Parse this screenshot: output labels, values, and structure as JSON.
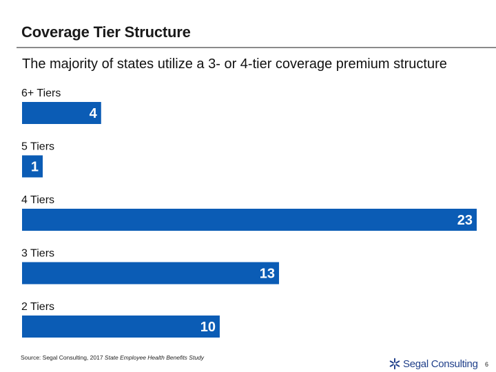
{
  "page": {
    "title": "Coverage Tier Structure",
    "subtitle": "The majority of states utilize a 3- or 4-tier coverage premium structure",
    "source_prefix": "Source: Segal Consulting, 2017 ",
    "source_italic": "State Employee Health Benefits Study",
    "logo_text": "Segal Consulting",
    "logo_icon": "segal-star-icon",
    "page_number": "6"
  },
  "colors": {
    "bar": "#0b5cb5",
    "logo": "#1f3f8a"
  },
  "chart_data": {
    "type": "bar",
    "orientation": "horizontal",
    "title": "",
    "xlabel": "",
    "ylabel": "",
    "categories": [
      "6+ Tiers",
      "5 Tiers",
      "4 Tiers",
      "3 Tiers",
      "2 Tiers"
    ],
    "values": [
      4,
      1,
      23,
      13,
      10
    ],
    "value_labels_shown": true,
    "grid": false,
    "legend": "none"
  }
}
